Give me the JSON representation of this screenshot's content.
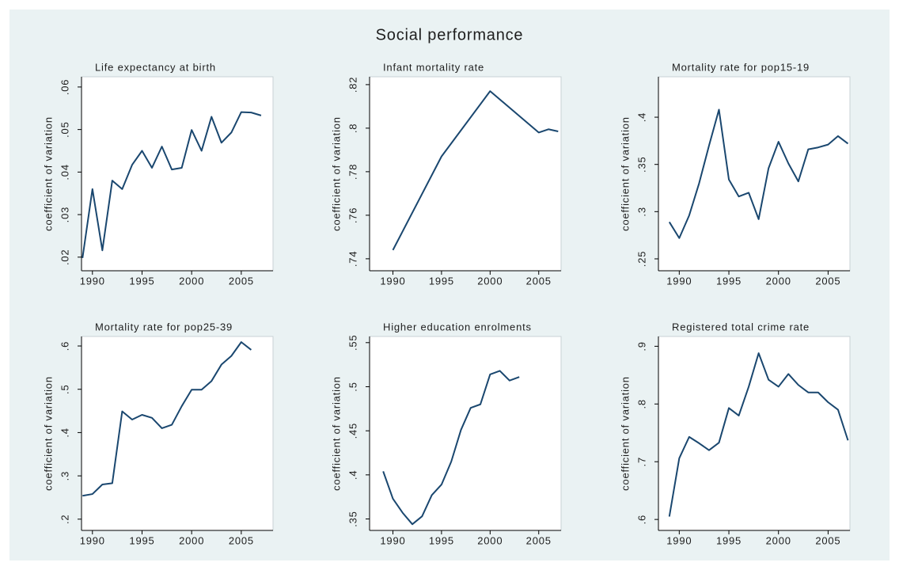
{
  "title": "Social performance",
  "chart_data": [
    {
      "type": "line",
      "title": "Life expectancy at birth",
      "ylabel": "coefficient of variation",
      "x": [
        1989,
        1990,
        1991,
        1992,
        1993,
        1994,
        1995,
        1996,
        1997,
        1998,
        1999,
        2000,
        2001,
        2002,
        2003,
        2004,
        2005,
        2006,
        2007
      ],
      "series": [
        {
          "color": "#1a476f",
          "values": [
            0.0198,
            0.036,
            0.0216,
            0.038,
            0.036,
            0.0417,
            0.045,
            0.041,
            0.046,
            0.0406,
            0.041,
            0.0499,
            0.045,
            0.053,
            0.0469,
            0.0493,
            0.0541,
            0.054,
            0.0533
          ]
        }
      ],
      "xlim": [
        1988.9,
        2008.2
      ],
      "xticks": [
        1990,
        1995,
        2000,
        2005
      ],
      "ylim": [
        0.0168,
        0.0624
      ],
      "yticks": [
        {
          "value": 0.02,
          "label": ".02"
        },
        {
          "value": 0.03,
          "label": ".03"
        },
        {
          "value": 0.04,
          "label": ".04"
        },
        {
          "value": 0.05,
          "label": ".05"
        },
        {
          "value": 0.06,
          "label": ".06"
        }
      ]
    },
    {
      "type": "line",
      "title": "Infant mortality rate",
      "ylabel": "coefficient of variation",
      "x": [
        1990,
        1995,
        2000,
        2005,
        2006,
        2007
      ],
      "series": [
        {
          "color": "#1a476f",
          "values": [
            0.744,
            0.787,
            0.817,
            0.798,
            0.7995,
            0.7985
          ]
        }
      ],
      "xlim": [
        1987.6,
        2007.3
      ],
      "xticks": [
        1990,
        1995,
        2000,
        2005
      ],
      "ylim": [
        0.7345,
        0.8236
      ],
      "yticks": [
        {
          "value": 0.74,
          "label": ".74"
        },
        {
          "value": 0.76,
          "label": ".76"
        },
        {
          "value": 0.78,
          "label": ".78"
        },
        {
          "value": 0.8,
          "label": ".8"
        },
        {
          "value": 0.82,
          "label": ".82"
        }
      ]
    },
    {
      "type": "line",
      "title": "Mortality rate for pop15-19",
      "ylabel": "coefficient of variation",
      "x": [
        1989,
        1990,
        1991,
        1992,
        1993,
        1994,
        1995,
        1996,
        1997,
        1998,
        1999,
        2000,
        2001,
        2002,
        2003,
        2004,
        2005,
        2006,
        2007
      ],
      "series": [
        {
          "color": "#1a476f",
          "values": [
            0.289,
            0.272,
            0.296,
            0.33,
            0.37,
            0.408,
            0.334,
            0.316,
            0.32,
            0.292,
            0.346,
            0.374,
            0.351,
            0.332,
            0.366,
            0.368,
            0.371,
            0.38,
            0.372
          ]
        }
      ],
      "xlim": [
        1987.9,
        2007.2
      ],
      "xticks": [
        1990,
        1995,
        2000,
        2005
      ],
      "ylim": [
        0.2374,
        0.4428
      ],
      "yticks": [
        {
          "value": 0.25,
          "label": ".25"
        },
        {
          "value": 0.3,
          "label": ".3"
        },
        {
          "value": 0.35,
          "label": ".35"
        },
        {
          "value": 0.4,
          "label": ".4"
        }
      ]
    },
    {
      "type": "line",
      "title": "Mortality rate for pop25-39",
      "ylabel": "coefficient of variation",
      "x": [
        1989,
        1990,
        1991,
        1992,
        1993,
        1994,
        1995,
        1996,
        1997,
        1998,
        1999,
        2000,
        2001,
        2002,
        2003,
        2004,
        2005,
        2006
      ],
      "series": [
        {
          "color": "#1a476f",
          "values": [
            0.254,
            0.258,
            0.28,
            0.283,
            0.449,
            0.43,
            0.441,
            0.434,
            0.41,
            0.418,
            0.461,
            0.499,
            0.499,
            0.519,
            0.557,
            0.577,
            0.609,
            0.591
          ]
        }
      ],
      "xlim": [
        1988.9,
        2008.2
      ],
      "xticks": [
        1990,
        1995,
        2000,
        2005
      ],
      "ylim": [
        0.174,
        0.622
      ],
      "yticks": [
        {
          "value": 0.2,
          "label": ".2"
        },
        {
          "value": 0.3,
          "label": ".3"
        },
        {
          "value": 0.4,
          "label": ".4"
        },
        {
          "value": 0.5,
          "label": ".5"
        },
        {
          "value": 0.6,
          "label": ".6"
        }
      ]
    },
    {
      "type": "line",
      "title": "Higher education enrolments",
      "ylabel": "coefficient of variation",
      "x": [
        1989,
        1990,
        1991,
        1992,
        1993,
        1994,
        1995,
        1996,
        1997,
        1998,
        1999,
        2000,
        2001,
        2002,
        2003
      ],
      "series": [
        {
          "color": "#1a476f",
          "values": [
            0.404,
            0.373,
            0.357,
            0.344,
            0.353,
            0.377,
            0.389,
            0.415,
            0.451,
            0.476,
            0.48,
            0.514,
            0.518,
            0.507,
            0.511
          ]
        }
      ],
      "xlim": [
        1987.6,
        2007.3
      ],
      "xticks": [
        1990,
        1995,
        2000,
        2005
      ],
      "ylim": [
        0.337,
        0.557
      ],
      "yticks": [
        {
          "value": 0.35,
          "label": ".35"
        },
        {
          "value": 0.4,
          "label": ".4"
        },
        {
          "value": 0.45,
          "label": ".45"
        },
        {
          "value": 0.5,
          "label": ".5"
        },
        {
          "value": 0.55,
          "label": ".55"
        }
      ]
    },
    {
      "type": "line",
      "title": "Registered total crime rate",
      "ylabel": "coefficient of variation",
      "x": [
        1989,
        1990,
        1991,
        1992,
        1993,
        1994,
        1995,
        1996,
        1997,
        1998,
        1999,
        2000,
        2001,
        2002,
        2003,
        2004,
        2005,
        2006,
        2007
      ],
      "series": [
        {
          "color": "#1a476f",
          "values": [
            0.605,
            0.706,
            0.743,
            0.732,
            0.72,
            0.733,
            0.793,
            0.78,
            0.83,
            0.888,
            0.842,
            0.83,
            0.852,
            0.833,
            0.82,
            0.82,
            0.803,
            0.79,
            0.737
          ]
        }
      ],
      "xlim": [
        1987.9,
        2007.2
      ],
      "xticks": [
        1990,
        1995,
        2000,
        2005
      ],
      "ylim": [
        0.581,
        0.917
      ],
      "yticks": [
        {
          "value": 0.6,
          "label": ".6"
        },
        {
          "value": 0.7,
          "label": ".7"
        },
        {
          "value": 0.8,
          "label": ".8"
        },
        {
          "value": 0.9,
          "label": ".9"
        }
      ]
    }
  ]
}
